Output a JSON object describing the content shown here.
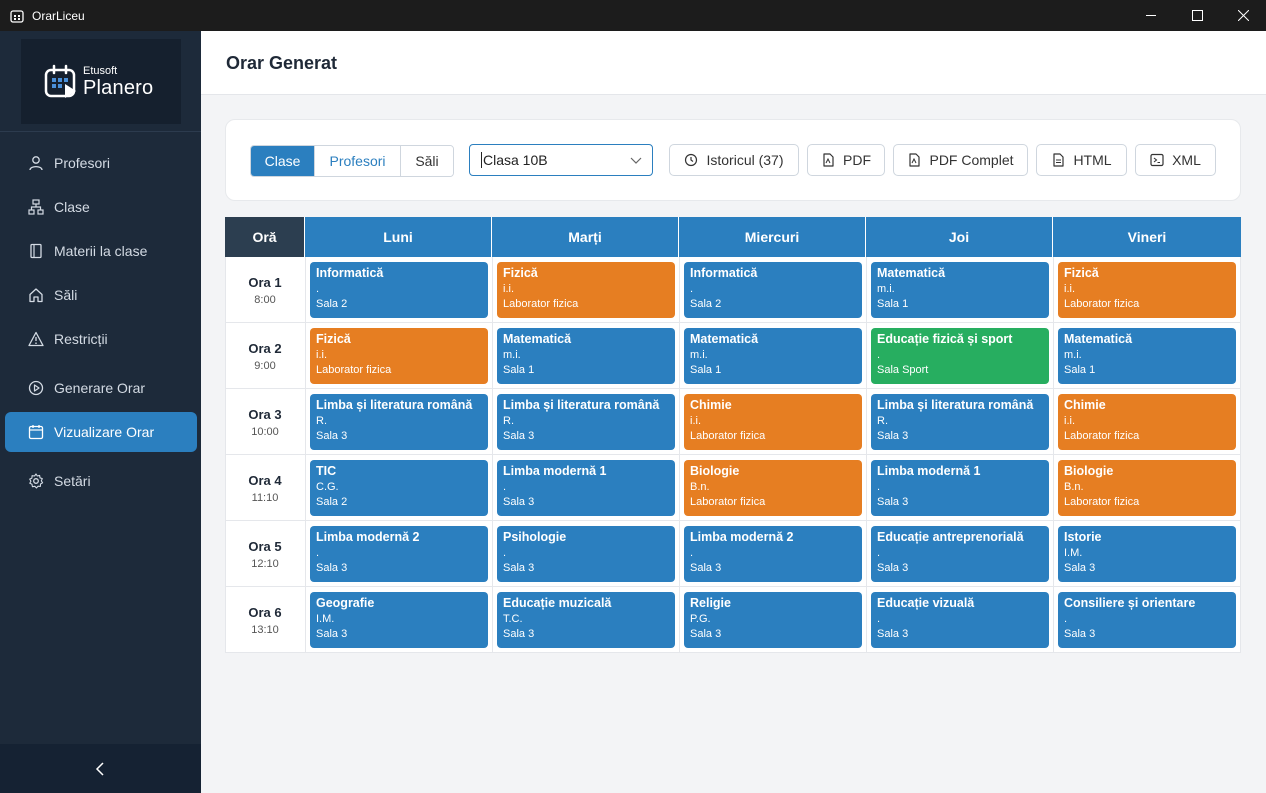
{
  "window": {
    "title": "OrarLiceu"
  },
  "brand": {
    "small": "Etusoft",
    "big": "Planero"
  },
  "nav": [
    {
      "label": "Profesori",
      "icon": "user-icon",
      "active": false
    },
    {
      "label": "Clase",
      "icon": "network-icon",
      "active": false
    },
    {
      "label": "Materii la clase",
      "icon": "book-icon",
      "active": false
    },
    {
      "label": "Săli",
      "icon": "home-icon",
      "active": false
    },
    {
      "label": "Restricții",
      "icon": "warning-icon",
      "active": false
    },
    {
      "label": "Generare Orar",
      "icon": "play-icon",
      "active": false
    },
    {
      "label": "Vizualizare Orar",
      "icon": "calendar-icon",
      "active": true
    },
    {
      "label": "Setări",
      "icon": "gear-icon",
      "active": false
    }
  ],
  "page": {
    "title": "Orar Generat"
  },
  "toolbar": {
    "view_tabs": [
      {
        "label": "Clase",
        "active": true
      },
      {
        "label": "Profesori",
        "active": false
      },
      {
        "label": "Săli",
        "active": false
      }
    ],
    "class_select": {
      "value": "Clasa 10B"
    },
    "history_label": "Istoricul (37)",
    "pdf_label": "PDF",
    "pdf_full_label": "PDF Complet",
    "html_label": "HTML",
    "xml_label": "XML"
  },
  "colors": {
    "blue": "#2b7fbf",
    "orange": "#e67e22",
    "green": "#27ae60",
    "sidebar": "#1d2a3a",
    "header_dark": "#2c3e50"
  },
  "schedule": {
    "hour_header": "Oră",
    "days": [
      "Luni",
      "Marți",
      "Miercuri",
      "Joi",
      "Vineri"
    ],
    "rows": [
      {
        "label": "Ora 1",
        "time": "8:00",
        "cells": [
          {
            "subject": "Informatică",
            "teacher": ".",
            "room": "Sala 2",
            "color": "blue"
          },
          {
            "subject": "Fizică",
            "teacher": "i.i.",
            "room": "Laborator fizica",
            "color": "orange"
          },
          {
            "subject": "Informatică",
            "teacher": ".",
            "room": "Sala 2",
            "color": "blue"
          },
          {
            "subject": "Matematică",
            "teacher": "m.i.",
            "room": "Sala 1",
            "color": "blue"
          },
          {
            "subject": "Fizică",
            "teacher": "i.i.",
            "room": "Laborator fizica",
            "color": "orange"
          }
        ]
      },
      {
        "label": "Ora 2",
        "time": "9:00",
        "cells": [
          {
            "subject": "Fizică",
            "teacher": "i.i.",
            "room": "Laborator fizica",
            "color": "orange"
          },
          {
            "subject": "Matematică",
            "teacher": "m.i.",
            "room": "Sala 1",
            "color": "blue"
          },
          {
            "subject": "Matematică",
            "teacher": "m.i.",
            "room": "Sala 1",
            "color": "blue"
          },
          {
            "subject": "Educație fizică și sport",
            "teacher": ".",
            "room": "Sala Sport",
            "color": "green"
          },
          {
            "subject": "Matematică",
            "teacher": "m.i.",
            "room": "Sala 1",
            "color": "blue"
          }
        ]
      },
      {
        "label": "Ora 3",
        "time": "10:00",
        "cells": [
          {
            "subject": "Limba și literatura română",
            "teacher": "R.",
            "room": "Sala 3",
            "color": "blue"
          },
          {
            "subject": "Limba și literatura română",
            "teacher": "R.",
            "room": "Sala 3",
            "color": "blue"
          },
          {
            "subject": "Chimie",
            "teacher": "i.i.",
            "room": "Laborator fizica",
            "color": "orange"
          },
          {
            "subject": "Limba și literatura română",
            "teacher": "R.",
            "room": "Sala 3",
            "color": "blue"
          },
          {
            "subject": "Chimie",
            "teacher": "i.i.",
            "room": "Laborator fizica",
            "color": "orange"
          }
        ]
      },
      {
        "label": "Ora 4",
        "time": "11:10",
        "cells": [
          {
            "subject": "TIC",
            "teacher": "C.G.",
            "room": "Sala 2",
            "color": "blue"
          },
          {
            "subject": "Limba modernă 1",
            "teacher": ".",
            "room": "Sala 3",
            "color": "blue"
          },
          {
            "subject": "Biologie",
            "teacher": "B.n.",
            "room": "Laborator fizica",
            "color": "orange"
          },
          {
            "subject": "Limba modernă 1",
            "teacher": ".",
            "room": "Sala 3",
            "color": "blue"
          },
          {
            "subject": "Biologie",
            "teacher": "B.n.",
            "room": "Laborator fizica",
            "color": "orange"
          }
        ]
      },
      {
        "label": "Ora 5",
        "time": "12:10",
        "cells": [
          {
            "subject": "Limba modernă 2",
            "teacher": ".",
            "room": "Sala 3",
            "color": "blue"
          },
          {
            "subject": "Psihologie",
            "teacher": ".",
            "room": "Sala 3",
            "color": "blue"
          },
          {
            "subject": "Limba modernă 2",
            "teacher": ".",
            "room": "Sala 3",
            "color": "blue"
          },
          {
            "subject": "Educație antreprenorială",
            "teacher": ".",
            "room": "Sala 3",
            "color": "blue"
          },
          {
            "subject": "Istorie",
            "teacher": "I.M.",
            "room": "Sala 3",
            "color": "blue"
          }
        ]
      },
      {
        "label": "Ora 6",
        "time": "13:10",
        "cells": [
          {
            "subject": "Geografie",
            "teacher": "I.M.",
            "room": "Sala 3",
            "color": "blue"
          },
          {
            "subject": "Educație muzicală",
            "teacher": "T.C.",
            "room": "Sala 3",
            "color": "blue"
          },
          {
            "subject": "Religie",
            "teacher": "P.G.",
            "room": "Sala 3",
            "color": "blue"
          },
          {
            "subject": "Educație vizuală",
            "teacher": ".",
            "room": "Sala 3",
            "color": "blue"
          },
          {
            "subject": "Consiliere și orientare",
            "teacher": ".",
            "room": "Sala 3",
            "color": "blue"
          }
        ]
      }
    ]
  }
}
